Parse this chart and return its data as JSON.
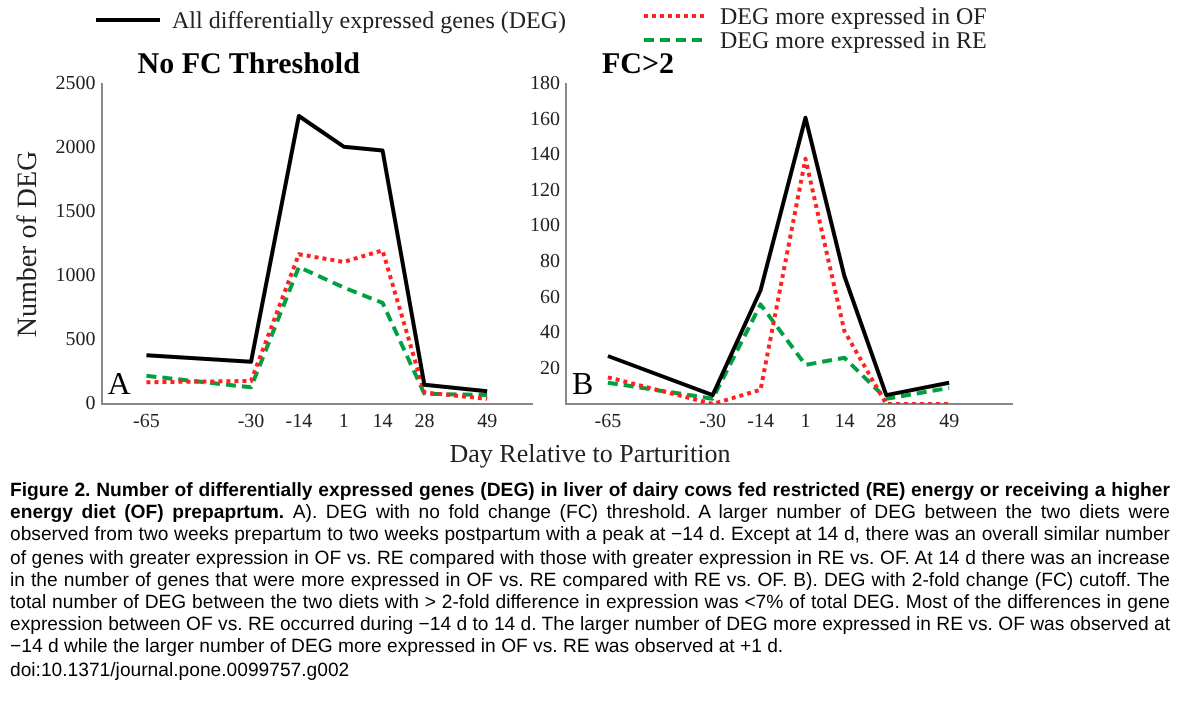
{
  "chart_data": [
    {
      "type": "line",
      "title": "No FC Threshold",
      "xlabel": "Day Relative to Parturition",
      "ylabel": "Number of DEG",
      "x": [
        -65,
        -30,
        -14,
        1,
        14,
        28,
        49
      ],
      "series": [
        {
          "name": "All differentially expressed genes (DEG)",
          "color": "#000000",
          "line_style": "solid",
          "values": [
            380,
            330,
            2250,
            2010,
            1980,
            150,
            100
          ]
        },
        {
          "name": "DEG more expressed in OF",
          "color": "#ff2020",
          "line_style": "dotted",
          "values": [
            170,
            180,
            1170,
            1110,
            1200,
            90,
            40
          ]
        },
        {
          "name": "DEG more expressed in RE",
          "color": "#00a040",
          "line_style": "dashed",
          "values": [
            220,
            130,
            1070,
            910,
            790,
            80,
            70
          ]
        }
      ],
      "xlim": [
        -80,
        64
      ],
      "xticks": [
        -65,
        -30,
        -14,
        1,
        14,
        28,
        49
      ],
      "ylim": [
        0,
        2500
      ],
      "yticks": [
        0,
        500,
        1000,
        1500,
        2000,
        2500
      ],
      "grid": false,
      "legend": "top",
      "marker": "none",
      "annotations": [
        "A",
        "Figure 2. Number of differentially expressed genes (DEG) in liver of dairy cows fed restricted (RE) energy or receiving a higher energy diet (OF) prepaprtum.",
        "A). DEG with no fold change (FC) threshold. A larger number of DEG between the two diets were observed from two weeks prepartum to two weeks postpartum with a peak at −14 d. Except at 14 d, there was an overall similar number of genes with greater expression in OF vs. RE compared with those with greater expression in RE vs. OF. At 14 d there was an increase in the number of genes that were more expressed in OF vs. RE compared with RE vs. OF. B). DEG with 2-fold change (FC) cutoff. The total number of DEG between the two diets with > 2-fold difference in expression was <7% of total DEG. Most of the differences in gene expression between OF vs. RE occurred during −14 d to 14 d. The larger number of DEG more expressed in RE vs. OF was observed at −14 d while the larger number of DEG more expressed in OF vs. RE was observed at +1 d.",
        "doi:10.1371/journal.pone.0099757.g002"
      ]
    },
    {
      "type": "line",
      "title": "FC>2",
      "x": [
        -65,
        -30,
        -14,
        1,
        14,
        28,
        49
      ],
      "series": [
        {
          "color": "#000000",
          "line_style": "solid",
          "values": [
            27,
            5,
            64,
            161,
            72,
            5,
            12
          ]
        },
        {
          "color": "#ff2020",
          "line_style": "dotted",
          "values": [
            15,
            0,
            8,
            138,
            41,
            0,
            0
          ]
        },
        {
          "color": "#00a040",
          "line_style": "dashed",
          "values": [
            12,
            3,
            56,
            22,
            26,
            3,
            9
          ]
        }
      ],
      "xlim": [
        -79,
        70
      ],
      "xticks": [
        -65,
        -30,
        -14,
        1,
        14,
        28,
        49
      ],
      "ylim": [
        0,
        180
      ],
      "yticks": [
        20,
        40,
        60,
        80,
        100,
        120,
        140,
        160,
        180
      ],
      "grid": false,
      "legend": false,
      "marker": "none",
      "annotations": [
        "B"
      ]
    }
  ]
}
